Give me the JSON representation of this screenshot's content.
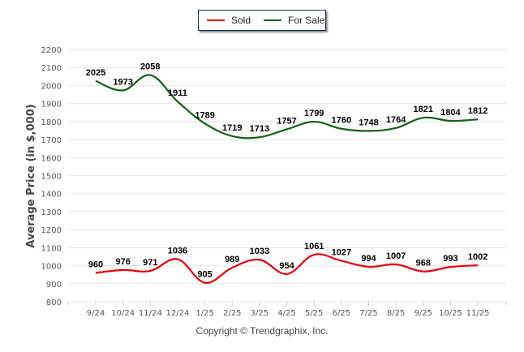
{
  "chart_data": {
    "type": "line",
    "title": "",
    "xlabel": "",
    "ylabel": "Average Price (in $,000)",
    "ylim": [
      800,
      2200
    ],
    "yticks": [
      800,
      900,
      1000,
      1100,
      1200,
      1300,
      1400,
      1500,
      1600,
      1700,
      1800,
      1900,
      2000,
      2100,
      2200
    ],
    "grid": true,
    "legend_position": "top-center",
    "categories": [
      "9/24",
      "10/24",
      "11/24",
      "12/24",
      "1/25",
      "2/25",
      "3/25",
      "4/25",
      "5/25",
      "6/25",
      "7/25",
      "8/25",
      "9/25",
      "10/25",
      "11/25"
    ],
    "series": [
      {
        "name": "Sold",
        "color": "#e8000b",
        "values": [
          960,
          976,
          971,
          1036,
          905,
          989,
          1033,
          954,
          1061,
          1027,
          994,
          1007,
          968,
          993,
          1002
        ]
      },
      {
        "name": "For Sale",
        "color": "#116011",
        "values": [
          2025,
          1973,
          2058,
          1911,
          1789,
          1719,
          1713,
          1757,
          1799,
          1760,
          1748,
          1764,
          1821,
          1804,
          1812
        ]
      }
    ]
  },
  "legend": {
    "items": [
      {
        "label": "Sold",
        "color": "#e8000b"
      },
      {
        "label": "For Sale",
        "color": "#116011"
      }
    ]
  },
  "footer": {
    "copyright": "Copyright © Trendgraphix, Inc."
  }
}
